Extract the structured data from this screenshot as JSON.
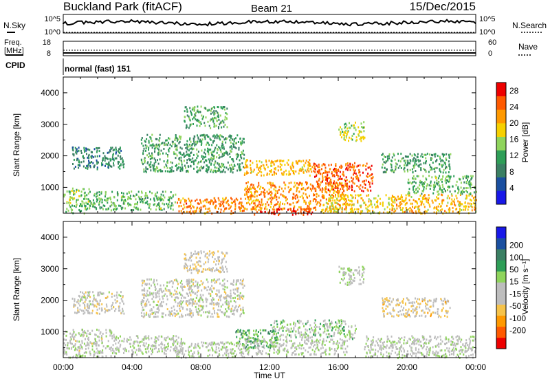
{
  "header": {
    "station": "Buckland Park (fitACF)",
    "beam": "Beam 21",
    "date": "15/Dec/2015"
  },
  "noise_panel": {
    "left_label": "N.Sky",
    "right_label": "N.Search",
    "ticks": {
      "top": "10^5",
      "bottom": "10^0"
    }
  },
  "freq_panel": {
    "left_label_line1": "Freq.",
    "left_label_line2": "[MHz]",
    "left_ticks": {
      "top": "18",
      "bottom": "8"
    },
    "right_label": "Nave",
    "right_ticks": {
      "top": "60",
      "bottom": "0"
    }
  },
  "cpid": {
    "label": "CPID",
    "value": "normal (fast) 151"
  },
  "colors": {
    "power": [
      "#1818e8",
      "#1a4fa0",
      "#3a7f63",
      "#2e9e57",
      "#8fd45c",
      "#f6d000",
      "#ff9900",
      "#ff5a00",
      "#ee0000"
    ],
    "velocity": [
      "#ee0000",
      "#ff5a00",
      "#ff9900",
      "#f6c34a",
      "#bdbdbd",
      "#bdbdbd",
      "#8fd45c",
      "#2e9e57",
      "#3a7f63",
      "#1a4fa0",
      "#1818e8"
    ]
  },
  "chart_data": [
    {
      "type": "heatmap",
      "panel": "power",
      "ylabel": "Slant Range [km]",
      "xlabel": "",
      "x_ticks": [
        "00:00",
        "04:00",
        "08:00",
        "12:00",
        "16:00",
        "20:00",
        "00:00"
      ],
      "y_ticks": [
        "1000",
        "2000",
        "3000",
        "4000"
      ],
      "ylim": [
        180,
        4500
      ],
      "xlim_hours": [
        0,
        24
      ],
      "colorbar": {
        "label": "Power [dB]",
        "ticks": [
          "4",
          "8",
          "12",
          "16",
          "20",
          "24",
          "28"
        ],
        "range": [
          0,
          30
        ]
      },
      "echo_regions": [
        {
          "t": [
            0,
            1.5
          ],
          "range": [
            200,
            1000
          ],
          "value": 14
        },
        {
          "t": [
            0.5,
            3.5
          ],
          "range": [
            1600,
            2300
          ],
          "value": 9
        },
        {
          "t": [
            1.5,
            6.5
          ],
          "range": [
            300,
            900
          ],
          "value": 13
        },
        {
          "t": [
            4.5,
            10.5
          ],
          "range": [
            1500,
            2700
          ],
          "value": 11
        },
        {
          "t": [
            6.5,
            10.5
          ],
          "range": [
            200,
            700
          ],
          "value": 23
        },
        {
          "t": [
            7,
            9.5
          ],
          "range": [
            2900,
            3600
          ],
          "value": 12
        },
        {
          "t": [
            10.5,
            14.5
          ],
          "range": [
            1400,
            1900
          ],
          "value": 20
        },
        {
          "t": [
            10.5,
            16.5
          ],
          "range": [
            300,
            1200
          ],
          "value": 22
        },
        {
          "t": [
            11,
            14.5
          ],
          "range": [
            150,
            350
          ],
          "value": 27
        },
        {
          "t": [
            14.5,
            18
          ],
          "range": [
            900,
            1800
          ],
          "value": 25
        },
        {
          "t": [
            15,
            19
          ],
          "range": [
            200,
            800
          ],
          "value": 18
        },
        {
          "t": [
            16,
            17.5
          ],
          "range": [
            2500,
            3100
          ],
          "value": 16
        },
        {
          "t": [
            18.5,
            22.5
          ],
          "range": [
            1500,
            2100
          ],
          "value": 11
        },
        {
          "t": [
            19,
            24
          ],
          "range": [
            200,
            800
          ],
          "value": 20
        },
        {
          "t": [
            20,
            24
          ],
          "range": [
            800,
            1400
          ],
          "value": 13
        }
      ]
    },
    {
      "type": "heatmap",
      "panel": "velocity",
      "ylabel": "Slant Range [km]",
      "xlabel": "Time UT",
      "x_ticks": [
        "00:00",
        "04:00",
        "08:00",
        "12:00",
        "16:00",
        "20:00",
        "00:00"
      ],
      "y_ticks": [
        "1000",
        "2000",
        "3000",
        "4000"
      ],
      "ylim": [
        180,
        4500
      ],
      "xlim_hours": [
        0,
        24
      ],
      "colorbar": {
        "label": "Velocity [m s⁻¹]",
        "ticks": [
          "200",
          "100",
          "50",
          "15",
          "-15",
          "-50",
          "-100",
          "-200"
        ],
        "range": [
          -250,
          250
        ]
      },
      "echo_regions": [
        {
          "t": [
            0,
            3
          ],
          "range": [
            200,
            1100
          ],
          "value": -10
        },
        {
          "t": [
            0.5,
            3.5
          ],
          "range": [
            1600,
            2300
          ],
          "value": -30
        },
        {
          "t": [
            3,
            7
          ],
          "range": [
            300,
            900
          ],
          "value": 5
        },
        {
          "t": [
            4.5,
            10.5
          ],
          "range": [
            1500,
            2700
          ],
          "value": -20
        },
        {
          "t": [
            6.5,
            10.5
          ],
          "range": [
            200,
            700
          ],
          "value": 0
        },
        {
          "t": [
            7,
            9.5
          ],
          "range": [
            2900,
            3600
          ],
          "value": -40
        },
        {
          "t": [
            10,
            12.5
          ],
          "range": [
            500,
            1100
          ],
          "value": 80
        },
        {
          "t": [
            12,
            17
          ],
          "range": [
            800,
            1400
          ],
          "value": 30
        },
        {
          "t": [
            10.5,
            16.5
          ],
          "range": [
            300,
            800
          ],
          "value": 0
        },
        {
          "t": [
            16,
            17.5
          ],
          "range": [
            2500,
            3100
          ],
          "value": 0
        },
        {
          "t": [
            18.5,
            22.5
          ],
          "range": [
            1500,
            2100
          ],
          "value": -60
        },
        {
          "t": [
            17.5,
            24
          ],
          "range": [
            200,
            900
          ],
          "value": 0
        }
      ]
    }
  ]
}
